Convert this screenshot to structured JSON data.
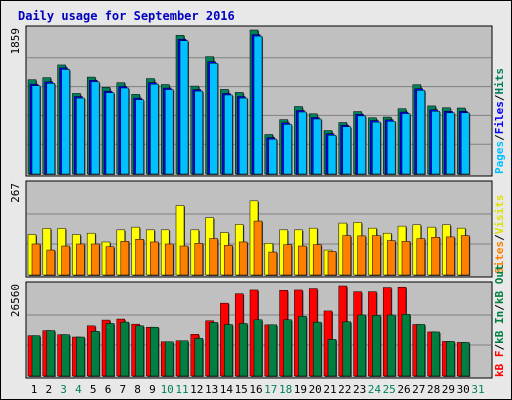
{
  "title": "Daily usage for September 2016",
  "colors": {
    "title": "#0000c0",
    "hits": "#00805c",
    "files": "#0000ff",
    "pages": "#00c0ff",
    "visits": "#ffff00",
    "sites": "#ff8000",
    "kb_in": "#008040",
    "kb_out": "#ff0000",
    "panel_bg": "#c0c0c0",
    "weekend_day": "#00805c",
    "weekday": "#000000"
  },
  "chart_data": [
    {
      "type": "bar",
      "panel": "hits-files-pages",
      "y_max_label": "1859",
      "ylim": [
        0,
        1859
      ],
      "legend": {
        "pages": "Pages",
        "files": "Files",
        "hits": "Hits",
        "sep": "/"
      },
      "series": [
        {
          "name": "Hits",
          "values": [
            1217,
            1244,
            1408,
            1040,
            1251,
            1119,
            1179,
            1028,
            1232,
            1155,
            1790,
            1135,
            1515,
            1092,
            1053,
            1859,
            510,
            702,
            871,
            777,
            561,
            665,
            806,
            726,
            735,
            843,
            1153,
            879,
            855,
            852
          ]
        },
        {
          "name": "Files",
          "values": [
            1160,
            1190,
            1370,
            1000,
            1210,
            1070,
            1130,
            980,
            1180,
            1110,
            1740,
            1090,
            1450,
            1040,
            1000,
            1800,
            470,
            660,
            820,
            730,
            520,
            630,
            770,
            690,
            700,
            800,
            1100,
            830,
            810,
            810
          ]
        },
        {
          "name": "Pages",
          "values": [
            1140,
            1170,
            1350,
            980,
            1190,
            1050,
            1110,
            960,
            1160,
            1090,
            1720,
            1070,
            1430,
            1020,
            980,
            1780,
            450,
            640,
            800,
            710,
            500,
            610,
            750,
            670,
            680,
            780,
            1080,
            810,
            790,
            790
          ]
        }
      ]
    },
    {
      "type": "bar",
      "panel": "visits-sites",
      "y_max_label": "267",
      "ylim": [
        0,
        267
      ],
      "legend": {
        "sites": "Sites",
        "visits": "Visits",
        "sep": "/"
      },
      "series": [
        {
          "name": "Visits",
          "values": [
            120,
            138,
            138,
            120,
            124,
            98,
            134,
            142,
            134,
            134,
            206,
            134,
            170,
            126,
            150,
            220,
            94,
            134,
            134,
            139,
            74,
            154,
            156,
            139,
            124,
            145,
            149,
            142,
            149,
            139
          ]
        },
        {
          "name": "Sites",
          "values": [
            92,
            74,
            86,
            92,
            92,
            84,
            100,
            106,
            98,
            92,
            86,
            94,
            108,
            88,
            98,
            160,
            68,
            90,
            86,
            90,
            70,
            117,
            116,
            117,
            102,
            100,
            108,
            112,
            113,
            117
          ]
        }
      ]
    },
    {
      "type": "bar",
      "panel": "kbytes",
      "y_max_label": "26560",
      "ylim": [
        0,
        26560
      ],
      "legend": {
        "kb_out": "kB F",
        "kb_in": "kB In",
        "kb_out_label": "kB Out",
        "sep": "/"
      },
      "series": [
        {
          "name": "kB F",
          "values": [
            11900,
            13400,
            12200,
            11500,
            14800,
            16500,
            16800,
            15300,
            14400,
            10100,
            10400,
            12300,
            16300,
            21500,
            24300,
            25400,
            15100,
            25300,
            25400,
            25800,
            19200,
            26560,
            24900,
            24900,
            26100,
            26200,
            15200,
            13000,
            10200,
            9900
          ]
        },
        {
          "name": "kB In",
          "values": [
            11900,
            13400,
            12200,
            11500,
            13200,
            15500,
            15900,
            14800,
            14400,
            10100,
            10400,
            11100,
            15800,
            15200,
            15500,
            16600,
            15100,
            16600,
            17600,
            15900,
            10800,
            16000,
            18000,
            17900,
            18000,
            18200,
            15200,
            13000,
            10200,
            9900
          ]
        }
      ]
    }
  ],
  "x_labels": [
    "1",
    "2",
    "3",
    "4",
    "5",
    "6",
    "7",
    "8",
    "9",
    "10",
    "11",
    "12",
    "13",
    "14",
    "15",
    "16",
    "17",
    "18",
    "19",
    "20",
    "21",
    "22",
    "23",
    "24",
    "25",
    "26",
    "27",
    "28",
    "29",
    "30",
    "31"
  ],
  "weekend_days": [
    3,
    4,
    10,
    11,
    17,
    18,
    24,
    25,
    31
  ]
}
